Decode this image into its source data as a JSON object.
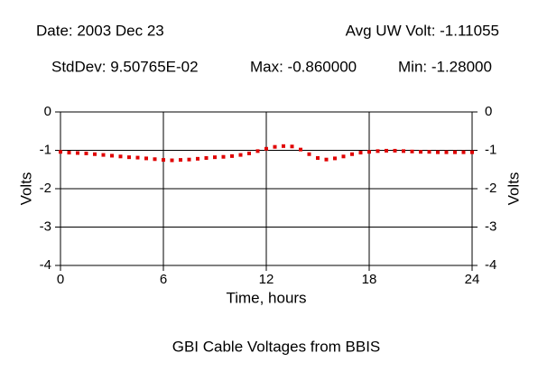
{
  "chart_data": {
    "type": "scatter",
    "title": "GBI Cable Voltages from BBIS",
    "header": [
      "Date: 2003 Dec 23",
      "Avg UW Volt: -1.11055",
      "StdDev: 9.50765E-02",
      "Max: -0.860000",
      "Min: -1.28000"
    ],
    "x_label": "Time, hours",
    "y_label": "Volts",
    "xlim": [
      0,
      24
    ],
    "xticks": [
      0,
      6,
      12,
      18,
      24
    ],
    "ylim": [
      -4,
      0
    ],
    "yticks": [
      0,
      -1,
      -2,
      -3,
      -4
    ],
    "grid": true,
    "series": [
      {
        "color": "#e00000",
        "x": [
          0,
          0.5,
          1,
          1.5,
          2,
          2.5,
          3,
          3.5,
          4,
          4.5,
          5,
          5.5,
          6,
          6.5,
          7,
          7.5,
          8,
          8.5,
          9,
          9.5,
          10,
          10.5,
          11,
          11.5,
          12,
          12.5,
          13,
          13.5,
          14,
          14.5,
          15,
          15.5,
          16,
          16.5,
          17,
          17.5,
          18,
          18.5,
          19,
          19.5,
          20,
          20.5,
          21,
          21.5,
          22,
          22.5,
          23,
          23.5,
          24
        ],
        "values": [
          -1.04,
          -1.06,
          -1.07,
          -1.08,
          -1.1,
          -1.12,
          -1.14,
          -1.16,
          -1.18,
          -1.19,
          -1.21,
          -1.23,
          -1.25,
          -1.26,
          -1.25,
          -1.24,
          -1.22,
          -1.2,
          -1.18,
          -1.17,
          -1.15,
          -1.12,
          -1.08,
          -1.02,
          -0.96,
          -0.91,
          -0.89,
          -0.9,
          -0.98,
          -1.1,
          -1.2,
          -1.24,
          -1.21,
          -1.16,
          -1.1,
          -1.06,
          -1.04,
          -1.02,
          -1.01,
          -1.01,
          -1.02,
          -1.03,
          -1.04,
          -1.04,
          -1.05,
          -1.05,
          -1.05,
          -1.05,
          -1.05
        ]
      }
    ]
  }
}
